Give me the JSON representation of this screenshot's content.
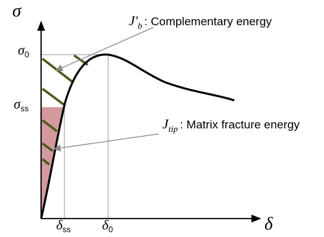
{
  "axes": {
    "y_symbol": "σ",
    "x_symbol": "δ"
  },
  "ticks": {
    "sigma_0": {
      "main": "σ",
      "sub": "0"
    },
    "sigma_ss": {
      "main": "σ",
      "sub": "ss"
    },
    "delta_ss": {
      "main": "δ",
      "sub": "ss"
    },
    "delta_0": {
      "main": "δ",
      "sub": "0"
    }
  },
  "annotations": {
    "complementary": {
      "symbol": "J'",
      "sub": "b",
      "text": ": Complementary energy"
    },
    "matrix": {
      "symbol": "J",
      "sub": "tip",
      "text": ": Matrix fracture energy"
    }
  },
  "colors": {
    "curve": "#000000",
    "hatch": "#4e5a1e",
    "fill": "#d4999d",
    "guide": "#9a9a9a",
    "arrow": "#8a8a8a"
  }
}
